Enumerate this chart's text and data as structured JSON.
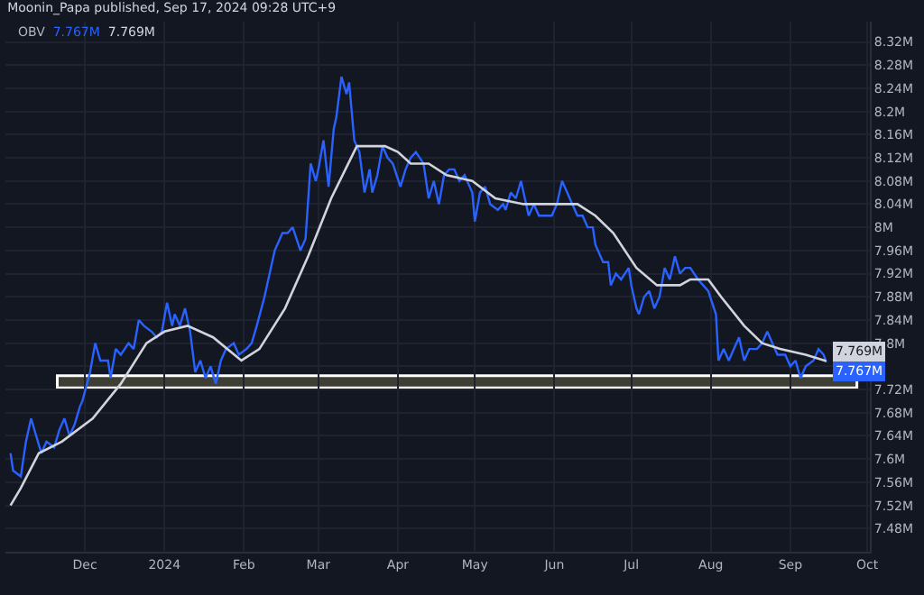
{
  "chart_data": {
    "type": "line",
    "title": "Moonin_Papa published, Sep 17, 2024 09:28 UTC+9",
    "x": [
      "2023-11-02",
      "2023-11-03",
      "2023-11-06",
      "2023-11-08",
      "2023-11-10",
      "2023-11-12",
      "2023-11-14",
      "2023-11-16",
      "2023-11-19",
      "2023-11-21",
      "2023-11-23",
      "2023-11-25",
      "2023-11-27",
      "2023-11-29",
      "2023-11-30",
      "2023-12-03",
      "2023-12-05",
      "2023-12-07",
      "2023-12-10",
      "2023-12-11",
      "2023-12-13",
      "2023-12-15",
      "2023-12-18",
      "2023-12-20",
      "2023-12-22",
      "2023-12-24",
      "2023-12-27",
      "2023-12-29",
      "2023-12-31",
      "2024-01-02",
      "2024-01-04",
      "2024-01-05",
      "2024-01-07",
      "2024-01-09",
      "2024-01-11",
      "2024-01-13",
      "2024-01-15",
      "2024-01-17",
      "2024-01-19",
      "2024-01-21",
      "2024-01-23",
      "2024-01-25",
      "2024-01-28",
      "2024-01-30",
      "2024-02-02",
      "2024-02-04",
      "2024-02-06",
      "2024-02-09",
      "2024-02-11",
      "2024-02-13",
      "2024-02-16",
      "2024-02-18",
      "2024-02-20",
      "2024-02-23",
      "2024-02-25",
      "2024-02-27",
      "2024-02-29",
      "2024-03-01",
      "2024-03-03",
      "2024-03-05",
      "2024-03-07",
      "2024-03-08",
      "2024-03-10",
      "2024-03-12",
      "2024-03-13",
      "2024-03-15",
      "2024-03-17",
      "2024-03-19",
      "2024-03-21",
      "2024-03-22",
      "2024-03-24",
      "2024-03-26",
      "2024-03-28",
      "2024-03-30",
      "2024-04-02",
      "2024-04-04",
      "2024-04-06",
      "2024-04-08",
      "2024-04-11",
      "2024-04-13",
      "2024-04-15",
      "2024-04-17",
      "2024-04-19",
      "2024-04-21",
      "2024-04-23",
      "2024-04-25",
      "2024-04-27",
      "2024-04-30",
      "2024-05-01",
      "2024-05-03",
      "2024-05-05",
      "2024-05-07",
      "2024-05-10",
      "2024-05-12",
      "2024-05-13",
      "2024-05-15",
      "2024-05-17",
      "2024-05-19",
      "2024-05-22",
      "2024-05-24",
      "2024-05-26",
      "2024-05-29",
      "2024-05-31",
      "2024-06-02",
      "2024-06-04",
      "2024-06-06",
      "2024-06-08",
      "2024-06-10",
      "2024-06-12",
      "2024-06-14",
      "2024-06-16",
      "2024-06-17",
      "2024-06-20",
      "2024-06-22",
      "2024-06-23",
      "2024-06-25",
      "2024-06-27",
      "2024-06-30",
      "2024-07-01",
      "2024-07-03",
      "2024-07-04",
      "2024-07-06",
      "2024-07-08",
      "2024-07-10",
      "2024-07-12",
      "2024-07-14",
      "2024-07-16",
      "2024-07-18",
      "2024-07-20",
      "2024-07-22",
      "2024-07-24",
      "2024-07-27",
      "2024-07-29",
      "2024-07-31",
      "2024-08-03",
      "2024-08-04",
      "2024-08-06",
      "2024-08-08",
      "2024-08-10",
      "2024-08-12",
      "2024-08-14",
      "2024-08-16",
      "2024-08-19",
      "2024-08-21",
      "2024-08-23",
      "2024-08-25",
      "2024-08-27",
      "2024-08-30",
      "2024-09-01",
      "2024-09-03",
      "2024-09-05",
      "2024-09-07",
      "2024-09-10",
      "2024-09-12",
      "2024-09-14",
      "2024-09-15"
    ],
    "series": [
      {
        "name": "OBV",
        "color": "#2962ff",
        "values": [
          7.61,
          7.58,
          7.57,
          7.63,
          7.67,
          7.64,
          7.61,
          7.63,
          7.62,
          7.65,
          7.67,
          7.64,
          7.66,
          7.69,
          7.7,
          7.75,
          7.8,
          7.77,
          7.77,
          7.74,
          7.79,
          7.78,
          7.8,
          7.79,
          7.84,
          7.83,
          7.82,
          7.81,
          7.82,
          7.87,
          7.83,
          7.85,
          7.83,
          7.86,
          7.82,
          7.75,
          7.77,
          7.74,
          7.76,
          7.73,
          7.77,
          7.79,
          7.8,
          7.78,
          7.79,
          7.8,
          7.83,
          7.88,
          7.92,
          7.96,
          7.99,
          7.99,
          8.0,
          7.96,
          7.98,
          8.11,
          8.08,
          8.1,
          8.15,
          8.07,
          8.17,
          8.19,
          8.26,
          8.23,
          8.25,
          8.15,
          8.13,
          8.06,
          8.1,
          8.06,
          8.09,
          8.14,
          8.12,
          8.11,
          8.07,
          8.1,
          8.12,
          8.13,
          8.11,
          8.05,
          8.08,
          8.04,
          8.09,
          8.1,
          8.1,
          8.08,
          8.09,
          8.06,
          8.01,
          8.06,
          8.07,
          8.04,
          8.03,
          8.04,
          8.03,
          8.06,
          8.05,
          8.08,
          8.02,
          8.04,
          8.02,
          8.02,
          8.02,
          8.04,
          8.08,
          8.06,
          8.04,
          8.02,
          8.02,
          8.0,
          8.0,
          7.97,
          7.94,
          7.94,
          7.9,
          7.92,
          7.91,
          7.93,
          7.9,
          7.86,
          7.85,
          7.88,
          7.89,
          7.86,
          7.88,
          7.93,
          7.91,
          7.95,
          7.92,
          7.93,
          7.93,
          7.91,
          7.9,
          7.89,
          7.85,
          7.77,
          7.79,
          7.77,
          7.79,
          7.81,
          7.77,
          7.79,
          7.79,
          7.8,
          7.82,
          7.8,
          7.78,
          7.78,
          7.76,
          7.77,
          7.74,
          7.76,
          7.77,
          7.79,
          7.78,
          7.767
        ],
        "value_labels": [
          null,
          null,
          null,
          null,
          null,
          null,
          null,
          null,
          null,
          null,
          null,
          null,
          null,
          null,
          null,
          null,
          null,
          null,
          null,
          null,
          null,
          null,
          null,
          null,
          null,
          null,
          null,
          null,
          null,
          null,
          null,
          null,
          null,
          null,
          null,
          null,
          null,
          null,
          null,
          null,
          null,
          null,
          null,
          null,
          null,
          null,
          null,
          null,
          null,
          null,
          null,
          null,
          null,
          null,
          null,
          null,
          null,
          null,
          null,
          null,
          null,
          null,
          null,
          null,
          null,
          null,
          null,
          null,
          null,
          null,
          null,
          null,
          null,
          null,
          null,
          null,
          null,
          null,
          null,
          null,
          null,
          null,
          null,
          null,
          null,
          null,
          null,
          null,
          null,
          null,
          null,
          null,
          null,
          null,
          null,
          null,
          null,
          null,
          null,
          null,
          null,
          null,
          null,
          null,
          null,
          null,
          null,
          null,
          null,
          null,
          null,
          null,
          null,
          null,
          null,
          null,
          null,
          null,
          null,
          null,
          null,
          null,
          null,
          null,
          null,
          null,
          null,
          null,
          null,
          null,
          null,
          null,
          null,
          null,
          null,
          null,
          null,
          null,
          null,
          null,
          null,
          null,
          null,
          null,
          null,
          null,
          null,
          null,
          null,
          null,
          null,
          null,
          null,
          null,
          null,
          "7.767M"
        ]
      },
      {
        "color": "#d1d4dc",
        "x": [
          "2023-11-02",
          "2023-11-06",
          "2023-11-13",
          "2023-11-22",
          "2023-12-04",
          "2023-12-15",
          "2023-12-25",
          "2024-01-01",
          "2024-01-10",
          "2024-01-20",
          "2024-01-31",
          "2024-02-07",
          "2024-02-17",
          "2024-02-26",
          "2024-03-06",
          "2024-03-16",
          "2024-03-18",
          "2024-03-27",
          "2024-04-01",
          "2024-04-06",
          "2024-04-13",
          "2024-04-20",
          "2024-04-30",
          "2024-05-09",
          "2024-05-20",
          "2024-06-01",
          "2024-06-10",
          "2024-06-17",
          "2024-06-24",
          "2024-07-03",
          "2024-07-11",
          "2024-07-20",
          "2024-07-24",
          "2024-07-31",
          "2024-08-05",
          "2024-08-14",
          "2024-08-21",
          "2024-08-28",
          "2024-09-07",
          "2024-09-15"
        ],
        "values": [
          7.52,
          7.55,
          7.61,
          7.63,
          7.67,
          7.73,
          7.8,
          7.82,
          7.83,
          7.81,
          7.77,
          7.79,
          7.86,
          7.95,
          8.05,
          8.14,
          8.14,
          8.14,
          8.13,
          8.11,
          8.11,
          8.09,
          8.08,
          8.05,
          8.04,
          8.04,
          8.04,
          8.02,
          7.99,
          7.93,
          7.9,
          7.9,
          7.91,
          7.91,
          7.88,
          7.83,
          7.8,
          7.79,
          7.78,
          7.769
        ],
        "value_labels": [
          null,
          null,
          null,
          null,
          null,
          null,
          null,
          null,
          null,
          null,
          null,
          null,
          null,
          null,
          null,
          null,
          null,
          null,
          null,
          null,
          null,
          null,
          null,
          null,
          null,
          null,
          null,
          null,
          null,
          null,
          null,
          null,
          null,
          null,
          null,
          null,
          null,
          null,
          null,
          "7.769M"
        ]
      }
    ],
    "bands": [
      {
        "axis": "y",
        "from": 7.723,
        "to": 7.744,
        "color": "#3d3f35"
      }
    ],
    "xlim": [
      "2023-10-31",
      "2024-10-02"
    ],
    "xticks": [
      {
        "value": "2023-12-01",
        "label": "Dec"
      },
      {
        "value": "2024-01-01",
        "label": "2024"
      },
      {
        "value": "2024-02-01",
        "label": "Feb"
      },
      {
        "value": "2024-03-01",
        "label": "Mar"
      },
      {
        "value": "2024-04-01",
        "label": "Apr"
      },
      {
        "value": "2024-05-01",
        "label": "May"
      },
      {
        "value": "2024-06-01",
        "label": "Jun"
      },
      {
        "value": "2024-07-01",
        "label": "Jul"
      },
      {
        "value": "2024-08-01",
        "label": "Aug"
      },
      {
        "value": "2024-09-01",
        "label": "Sep"
      },
      {
        "value": "2024-10-01",
        "label": "Oct"
      }
    ],
    "ylim": [
      7.44,
      8.355
    ],
    "yticks": [
      {
        "value": 7.48,
        "label": "7.48M"
      },
      {
        "value": 7.52,
        "label": "7.52M"
      },
      {
        "value": 7.56,
        "label": "7.56M"
      },
      {
        "value": 7.6,
        "label": "7.6M"
      },
      {
        "value": 7.64,
        "label": "7.64M"
      },
      {
        "value": 7.68,
        "label": "7.68M"
      },
      {
        "value": 7.72,
        "label": "7.72M"
      },
      {
        "value": 7.76,
        "label": null
      },
      {
        "value": 7.8,
        "label": "7.8M"
      },
      {
        "value": 7.84,
        "label": "7.84M"
      },
      {
        "value": 7.88,
        "label": "7.88M"
      },
      {
        "value": 7.92,
        "label": "7.92M"
      },
      {
        "value": 7.96,
        "label": "7.96M"
      },
      {
        "value": 8.0,
        "label": "8M"
      },
      {
        "value": 8.04,
        "label": "8.04M"
      },
      {
        "value": 8.08,
        "label": "8.08M"
      },
      {
        "value": 8.12,
        "label": "8.12M"
      },
      {
        "value": 8.16,
        "label": "8.16M"
      },
      {
        "value": 8.2,
        "label": "8.2M"
      },
      {
        "value": 8.24,
        "label": "8.24M"
      },
      {
        "value": 8.28,
        "label": "8.28M"
      },
      {
        "value": 8.32,
        "label": "8.32M"
      }
    ],
    "grid": true,
    "line_style": "solid"
  }
}
